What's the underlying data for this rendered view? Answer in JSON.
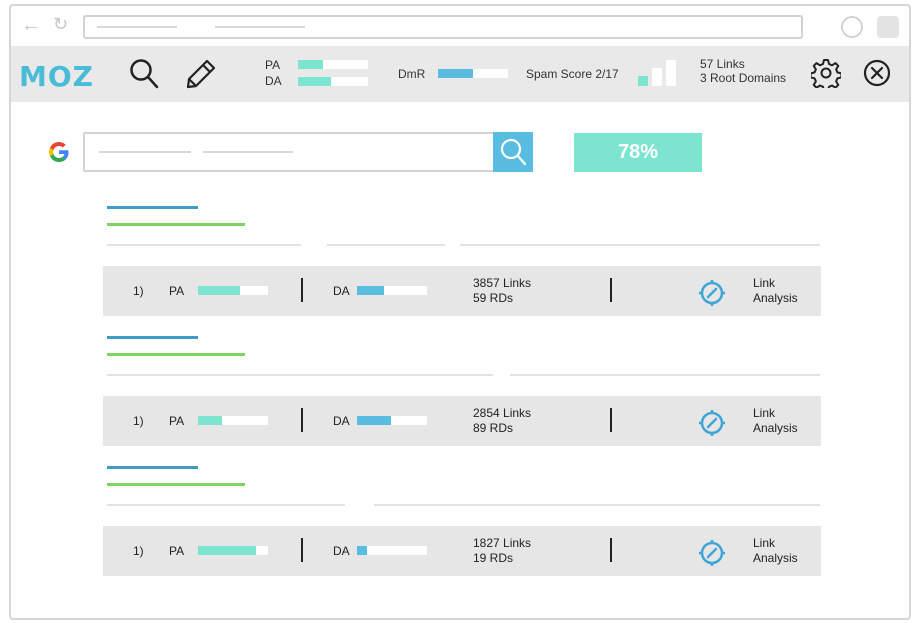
{
  "toolbar": {
    "logo": "MOZ",
    "pa_label": "PA",
    "pa_value": 0.35,
    "da_label": "DA",
    "da_value": 0.47,
    "dmr_label": "DmR",
    "dmr_value": 0.5,
    "spam_label": "Spam Score 2/17",
    "links_label": "57 Links",
    "root_domains_label": "3 Root Domains",
    "icons": [
      "search-icon",
      "pencil-icon",
      "gear-icon",
      "close-circle-icon"
    ]
  },
  "serp": {
    "score": "78%"
  },
  "colors": {
    "teal": "#7de5cf",
    "blue": "#59bde2",
    "title_blue": "#3e9cc5",
    "url_green": "#7ed55f",
    "toolbar_gray": "#e9e9e9"
  },
  "results": [
    {
      "rank": "1)",
      "pa_label": "PA",
      "pa_value": 0.6,
      "da_label": "DA",
      "da_value": 0.38,
      "links": "3857 Links",
      "rds": "59 RDs",
      "analysis_line1": "Link",
      "analysis_line2": "Analysis"
    },
    {
      "rank": "1)",
      "pa_label": "PA",
      "pa_value": 0.34,
      "da_label": "DA",
      "da_value": 0.49,
      "links": "2854 Links",
      "rds": "89 RDs",
      "analysis_line1": "Link",
      "analysis_line2": "Analysis"
    },
    {
      "rank": "1)",
      "pa_label": "PA",
      "pa_value": 0.83,
      "da_label": "DA",
      "da_value": 0.14,
      "links": "1827 Links",
      "rds": "19 RDs",
      "analysis_line1": "Link",
      "analysis_line2": "Analysis"
    }
  ]
}
